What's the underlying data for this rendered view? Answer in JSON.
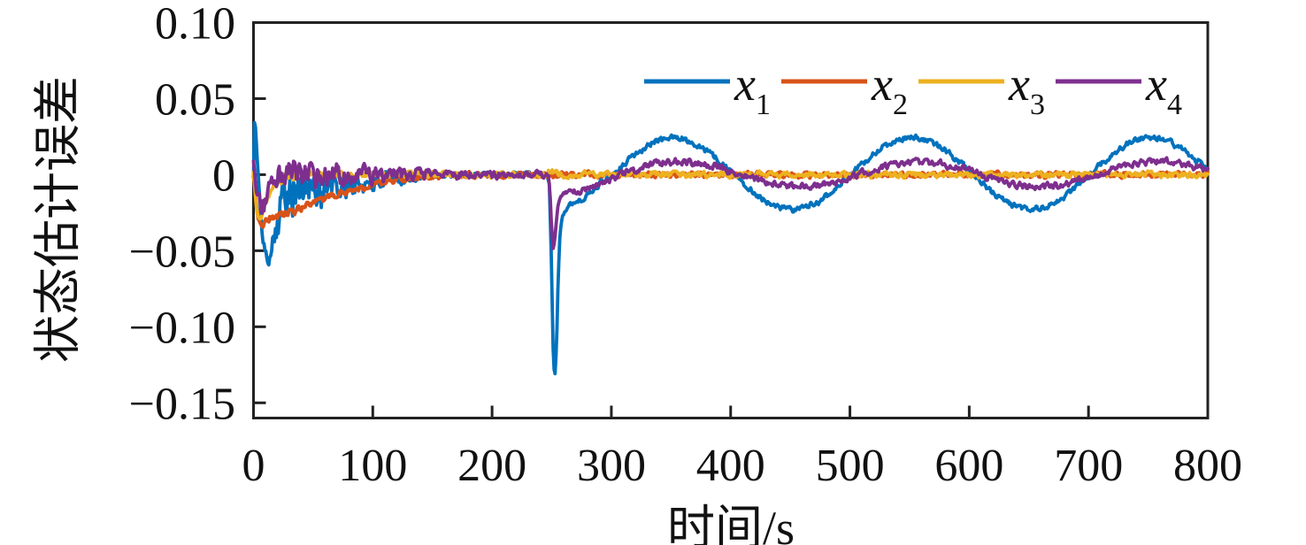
{
  "chart_data": {
    "type": "line",
    "title": "",
    "xlabel": "时间/s",
    "ylabel": "状态估计误差",
    "xlim": [
      0,
      800
    ],
    "ylim": [
      -0.16,
      0.1
    ],
    "xticks": [
      0,
      100,
      200,
      300,
      400,
      500,
      600,
      700,
      800
    ],
    "xtick_labels": [
      "0",
      "100",
      "200",
      "300",
      "400",
      "500",
      "600",
      "700",
      "800"
    ],
    "yticks": [
      0.1,
      0.05,
      0,
      -0.05,
      -0.1,
      -0.15
    ],
    "ytick_labels": [
      "0.10",
      "0.05",
      "0",
      "−0.05",
      "−0.10",
      "−0.15"
    ],
    "grid": false,
    "legend_position": "top-right-inside",
    "background": "#ffffff",
    "axis_color": "#222222",
    "tick_direction": "in",
    "series": [
      {
        "name": "x1",
        "label_base": "x",
        "label_sub": "1",
        "color": "#0072BD",
        "width": 3.8,
        "noise": [
          [
            0,
            0.0015
          ],
          [
            15,
            0.004
          ],
          [
            20,
            0.011
          ],
          [
            30,
            0.012
          ],
          [
            40,
            0.011
          ],
          [
            50,
            0.009
          ],
          [
            60,
            0.008
          ],
          [
            70,
            0.007
          ],
          [
            80,
            0.0055
          ],
          [
            90,
            0.005
          ],
          [
            100,
            0.0042
          ],
          [
            110,
            0.0036
          ],
          [
            120,
            0.003
          ],
          [
            130,
            0.0024
          ],
          [
            140,
            0.002
          ],
          [
            150,
            0.0016
          ],
          [
            170,
            0.0013
          ],
          [
            240,
            0.0012
          ],
          [
            260,
            0.0014
          ],
          [
            300,
            0.0013
          ],
          [
            800,
            0.0013
          ]
        ],
        "segments": [
          {
            "type": "points",
            "pts": [
              [
                0,
                0.0
              ],
              [
                0.8,
                0.034
              ],
              [
                1.6,
                0.031
              ],
              [
                3,
                0.012
              ],
              [
                4.5,
                -0.008
              ],
              [
                6,
                -0.026
              ],
              [
                8,
                -0.042
              ],
              [
                10,
                -0.052
              ],
              [
                11.5,
                -0.057
              ],
              [
                13,
                -0.053
              ],
              [
                15,
                -0.045
              ],
              [
                17,
                -0.037
              ],
              [
                19,
                -0.03
              ],
              [
                21,
                -0.024
              ],
              [
                23,
                -0.019
              ],
              [
                25,
                -0.014
              ],
              [
                27,
                -0.009
              ],
              [
                29,
                -0.003
              ],
              [
                31,
                0.001
              ],
              [
                33,
                -0.007
              ],
              [
                35,
                -0.012
              ],
              [
                37,
                -0.006
              ],
              [
                39,
                -0.012
              ],
              [
                41,
                -0.007
              ],
              [
                44,
                -0.012
              ],
              [
                47,
                -0.008
              ],
              [
                50,
                -0.011
              ],
              [
                54,
                -0.008
              ],
              [
                58,
                -0.011
              ],
              [
                62,
                -0.008
              ],
              [
                66,
                -0.01
              ],
              [
                70,
                -0.008
              ],
              [
                75,
                -0.009
              ],
              [
                80,
                -0.007
              ],
              [
                85,
                -0.008
              ],
              [
                90,
                -0.006
              ],
              [
                95,
                -0.006
              ],
              [
                100,
                -0.005
              ],
              [
                110,
                -0.004
              ],
              [
                120,
                -0.003
              ],
              [
                130,
                -0.002
              ],
              [
                140,
                -0.0012
              ],
              [
                150,
                -0.0006
              ],
              [
                165,
                -0.0002
              ],
              [
                185,
                0
              ],
              [
                246,
                0
              ],
              [
                248,
                -0.004
              ],
              [
                249.5,
                -0.05
              ],
              [
                251,
                -0.11
              ],
              [
                252.5,
                -0.136
              ],
              [
                254,
                -0.112
              ],
              [
                255.5,
                -0.065
              ],
              [
                257,
                -0.038
              ],
              [
                259,
                -0.027
              ],
              [
                261,
                -0.022
              ],
              [
                264,
                -0.0195
              ],
              [
                268,
                -0.019
              ],
              [
                272,
                -0.0185
              ],
              [
                276,
                -0.016
              ],
              [
                280,
                -0.013
              ],
              [
                285,
                -0.0095
              ],
              [
                290,
                -0.006
              ],
              [
                295,
                -0.003
              ],
              [
                300,
                -0.0007
              ]
            ]
          },
          {
            "type": "sine",
            "t0": 300,
            "t1": 800,
            "mean": 0.0008,
            "amp": 0.0235,
            "period": 200,
            "tpeak": 352
          }
        ]
      },
      {
        "name": "x2",
        "label_base": "x",
        "label_sub": "2",
        "color": "#D95319",
        "width": 4.2,
        "noise": [
          [
            0,
            0.0015
          ],
          [
            10,
            0.0018
          ],
          [
            60,
            0.0015
          ],
          [
            150,
            0.0012
          ],
          [
            800,
            0.0012
          ]
        ],
        "segments": [
          {
            "type": "points",
            "pts": [
              [
                0,
                0
              ],
              [
                1,
                -0.008
              ],
              [
                2.5,
                -0.02
              ],
              [
                4,
                -0.028
              ],
              [
                6,
                -0.0315
              ],
              [
                8,
                -0.032
              ],
              [
                10,
                -0.0305
              ],
              [
                13,
                -0.029
              ],
              [
                16,
                -0.0275
              ],
              [
                20,
                -0.0275
              ],
              [
                24,
                -0.0265
              ],
              [
                28,
                -0.0255
              ],
              [
                32,
                -0.0245
              ],
              [
                36,
                -0.0235
              ],
              [
                40,
                -0.0225
              ],
              [
                45,
                -0.021
              ],
              [
                50,
                -0.019
              ],
              [
                55,
                -0.0175
              ],
              [
                60,
                -0.016
              ],
              [
                65,
                -0.0145
              ],
              [
                70,
                -0.013
              ],
              [
                75,
                -0.0115
              ],
              [
                80,
                -0.0105
              ],
              [
                85,
                -0.0095
              ],
              [
                90,
                -0.0085
              ],
              [
                95,
                -0.0075
              ],
              [
                100,
                -0.0065
              ],
              [
                105,
                -0.0058
              ],
              [
                110,
                -0.005
              ],
              [
                115,
                -0.0044
              ],
              [
                120,
                -0.0038
              ],
              [
                125,
                -0.0032
              ],
              [
                130,
                -0.0027
              ],
              [
                135,
                -0.0023
              ],
              [
                140,
                -0.0019
              ],
              [
                145,
                -0.0016
              ],
              [
                150,
                -0.0013
              ],
              [
                160,
                -0.0009
              ],
              [
                170,
                -0.0006
              ],
              [
                185,
                -0.0003
              ],
              [
                200,
                -0.0002
              ],
              [
                220,
                -0.0001
              ],
              [
                250,
                0
              ],
              [
                800,
                0
              ]
            ]
          }
        ]
      },
      {
        "name": "x3",
        "label_base": "x",
        "label_sub": "3",
        "color": "#EDB120",
        "width": 3.8,
        "noise": [
          [
            0,
            0.0015
          ],
          [
            10,
            0.0018
          ],
          [
            40,
            0.0015
          ],
          [
            150,
            0.0013
          ],
          [
            800,
            0.0013
          ]
        ],
        "segments": [
          {
            "type": "points",
            "pts": [
              [
                0,
                0
              ],
              [
                1,
                -0.01
              ],
              [
                2.5,
                -0.022
              ],
              [
                4,
                -0.028
              ],
              [
                5.5,
                -0.0285
              ],
              [
                7,
                -0.026
              ],
              [
                9,
                -0.022
              ],
              [
                11,
                -0.017
              ],
              [
                13,
                -0.013
              ],
              [
                15,
                -0.01
              ],
              [
                17,
                -0.0075
              ],
              [
                19,
                -0.0055
              ],
              [
                21,
                -0.004
              ],
              [
                24,
                -0.0028
              ],
              [
                27,
                -0.0018
              ],
              [
                30,
                -0.0012
              ],
              [
                35,
                -0.0007
              ],
              [
                40,
                -0.0004
              ],
              [
                50,
                -0.0002
              ],
              [
                60,
                0
              ],
              [
                244,
                0
              ],
              [
                246,
                0.0005
              ],
              [
                248,
                0.003
              ],
              [
                250,
                0.0035
              ],
              [
                252,
                0.0015
              ],
              [
                254,
                0.0003
              ],
              [
                260,
                0
              ],
              [
                800,
                0
              ]
            ]
          }
        ]
      },
      {
        "name": "x4",
        "label_base": "x",
        "label_sub": "4",
        "color": "#7E2F8E",
        "width": 3.8,
        "noise": [
          [
            0,
            0.003
          ],
          [
            8,
            0.005
          ],
          [
            15,
            0.0065
          ],
          [
            25,
            0.007
          ],
          [
            40,
            0.006
          ],
          [
            55,
            0.005
          ],
          [
            70,
            0.0045
          ],
          [
            85,
            0.004
          ],
          [
            100,
            0.0035
          ],
          [
            115,
            0.003
          ],
          [
            130,
            0.0027
          ],
          [
            145,
            0.0023
          ],
          [
            160,
            0.002
          ],
          [
            200,
            0.0017
          ],
          [
            240,
            0.0015
          ],
          [
            260,
            0.0015
          ],
          [
            800,
            0.0014
          ]
        ],
        "segments": [
          {
            "type": "points",
            "pts": [
              [
                0,
                0.01
              ],
              [
                1,
                -0.002
              ],
              [
                3,
                -0.01
              ],
              [
                5,
                -0.016
              ],
              [
                7,
                -0.021
              ],
              [
                9,
                -0.02
              ],
              [
                11,
                -0.015
              ],
              [
                13,
                -0.01
              ],
              [
                15,
                -0.007
              ],
              [
                17,
                -0.005
              ],
              [
                19,
                -0.003
              ],
              [
                22,
                -0.002
              ],
              [
                25,
                -0.001
              ],
              [
                30,
                -0.0005
              ],
              [
                40,
                0
              ],
              [
                240,
                0
              ],
              [
                247,
                -0.001
              ],
              [
                248.5,
                -0.012
              ],
              [
                250,
                -0.038
              ],
              [
                251.5,
                -0.051
              ],
              [
                253,
                -0.04
              ],
              [
                254.5,
                -0.025
              ],
              [
                256,
                -0.017
              ],
              [
                258,
                -0.014
              ],
              [
                262,
                -0.0125
              ],
              [
                267,
                -0.012
              ],
              [
                272,
                -0.0115
              ],
              [
                277,
                -0.01
              ],
              [
                283,
                -0.008
              ],
              [
                290,
                -0.0055
              ],
              [
                297,
                -0.0035
              ],
              [
                304,
                -0.0015
              ],
              [
                310,
                0.0008
              ]
            ]
          },
          {
            "type": "sine",
            "t0": 310,
            "t1": 800,
            "mean": 0.0003,
            "amp": 0.0082,
            "period": 200,
            "tpeak": 358
          }
        ]
      }
    ]
  }
}
